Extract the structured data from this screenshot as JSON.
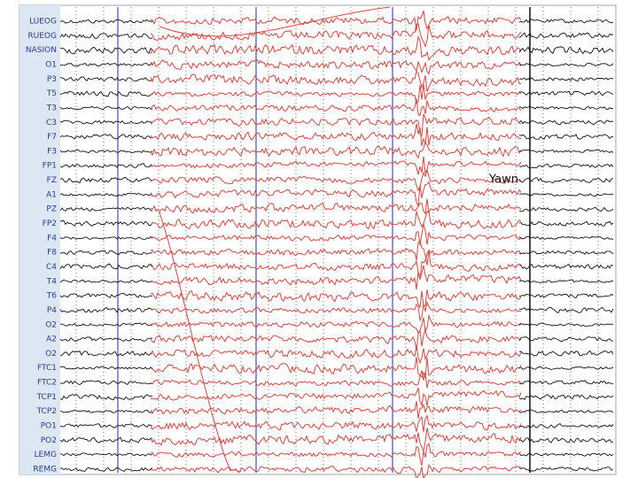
{
  "channels": [
    "LUEOG",
    "RUEOG",
    "NASION",
    "O1",
    "P3",
    "T5",
    "T3",
    "C3",
    "F7",
    "F3",
    "FP1",
    "FZ",
    "A1",
    "PZ",
    "FP2",
    "F4",
    "F8",
    "C4",
    "T4",
    "T6",
    "P4",
    "O2",
    "A2",
    "O2",
    "FTC1",
    "FTC2",
    "TCP1",
    "TCP2",
    "PO1",
    "PO2",
    "LEMG",
    "REMG"
  ],
  "annotation": "Yawn"
}
